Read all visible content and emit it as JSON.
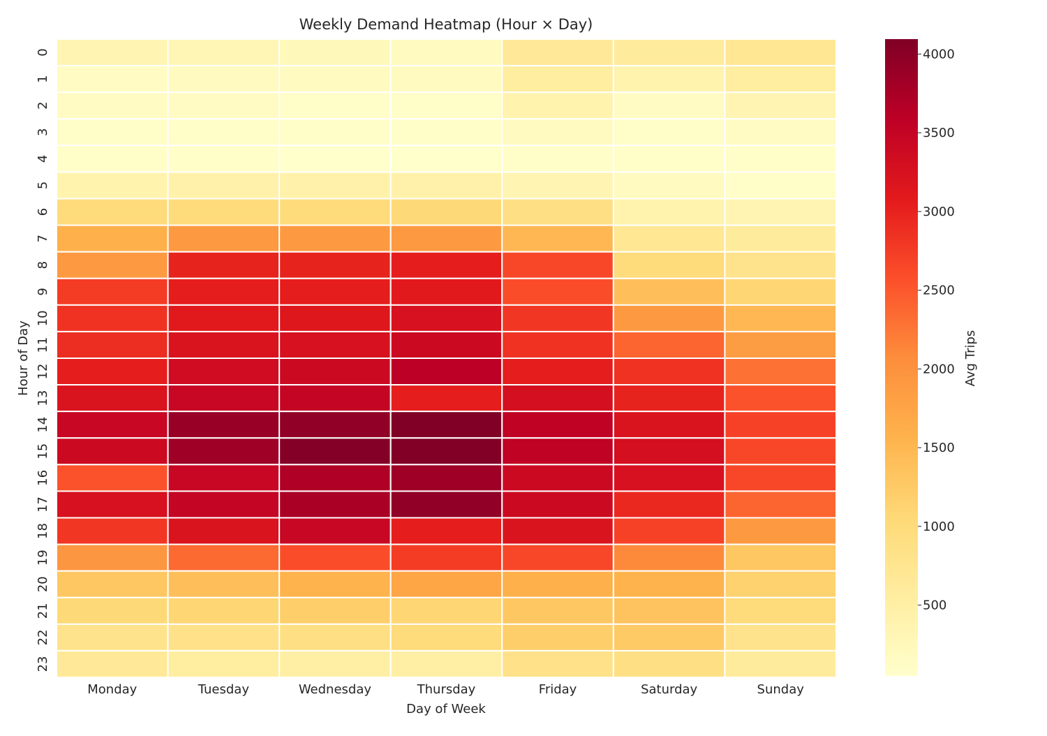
{
  "chart_data": {
    "type": "heatmap",
    "title": "Weekly Demand Heatmap (Hour × Day)",
    "xlabel": "Day of Week",
    "ylabel": "Hour of Day",
    "colorbar_label": "Avg Trips",
    "colormap": "YlOrRd",
    "color_range": [
      50,
      4095
    ],
    "colorbar_ticks": [
      500,
      1000,
      1500,
      2000,
      2500,
      3000,
      3500,
      4000
    ],
    "x_categories": [
      "Monday",
      "Tuesday",
      "Wednesday",
      "Thursday",
      "Friday",
      "Saturday",
      "Sunday"
    ],
    "y_categories": [
      "0",
      "1",
      "2",
      "3",
      "4",
      "5",
      "6",
      "7",
      "8",
      "9",
      "10",
      "11",
      "12",
      "13",
      "14",
      "15",
      "16",
      "17",
      "18",
      "19",
      "20",
      "21",
      "22",
      "23"
    ],
    "values": [
      [
        350,
        300,
        250,
        200,
        650,
        600,
        700
      ],
      [
        150,
        200,
        200,
        200,
        550,
        400,
        550
      ],
      [
        150,
        150,
        100,
        100,
        400,
        150,
        350
      ],
      [
        100,
        100,
        80,
        80,
        200,
        100,
        150
      ],
      [
        80,
        80,
        60,
        60,
        100,
        80,
        80
      ],
      [
        400,
        450,
        450,
        450,
        350,
        200,
        100
      ],
      [
        1000,
        1000,
        1000,
        1050,
        900,
        400,
        350
      ],
      [
        1600,
        1900,
        1900,
        1900,
        1500,
        700,
        600
      ],
      [
        1900,
        3000,
        3000,
        3050,
        2650,
        1000,
        800
      ],
      [
        2750,
        3050,
        3050,
        3100,
        2600,
        1400,
        1100
      ],
      [
        2850,
        3100,
        3150,
        3250,
        2800,
        1900,
        1500
      ],
      [
        2900,
        3200,
        3250,
        3400,
        2850,
        2400,
        1850
      ],
      [
        3050,
        3350,
        3400,
        3600,
        3050,
        2850,
        2300
      ],
      [
        3200,
        3450,
        3500,
        3050,
        3300,
        3000,
        2550
      ],
      [
        3450,
        3900,
        3950,
        4090,
        3550,
        3200,
        2700
      ],
      [
        3400,
        3850,
        4050,
        4080,
        3550,
        3300,
        2650
      ],
      [
        2550,
        3450,
        3700,
        3850,
        3400,
        3250,
        2650
      ],
      [
        3250,
        3500,
        3750,
        3950,
        3400,
        2950,
        2400
      ],
      [
        2800,
        3200,
        3450,
        3050,
        3200,
        2700,
        1900
      ],
      [
        1950,
        2350,
        2600,
        2750,
        2650,
        2100,
        1300
      ],
      [
        1300,
        1400,
        1550,
        1750,
        1600,
        1550,
        1150
      ],
      [
        1050,
        1100,
        1200,
        1100,
        1300,
        1350,
        1000
      ],
      [
        800,
        850,
        900,
        1000,
        1200,
        1250,
        800
      ],
      [
        650,
        550,
        500,
        500,
        850,
        900,
        600
      ]
    ]
  }
}
